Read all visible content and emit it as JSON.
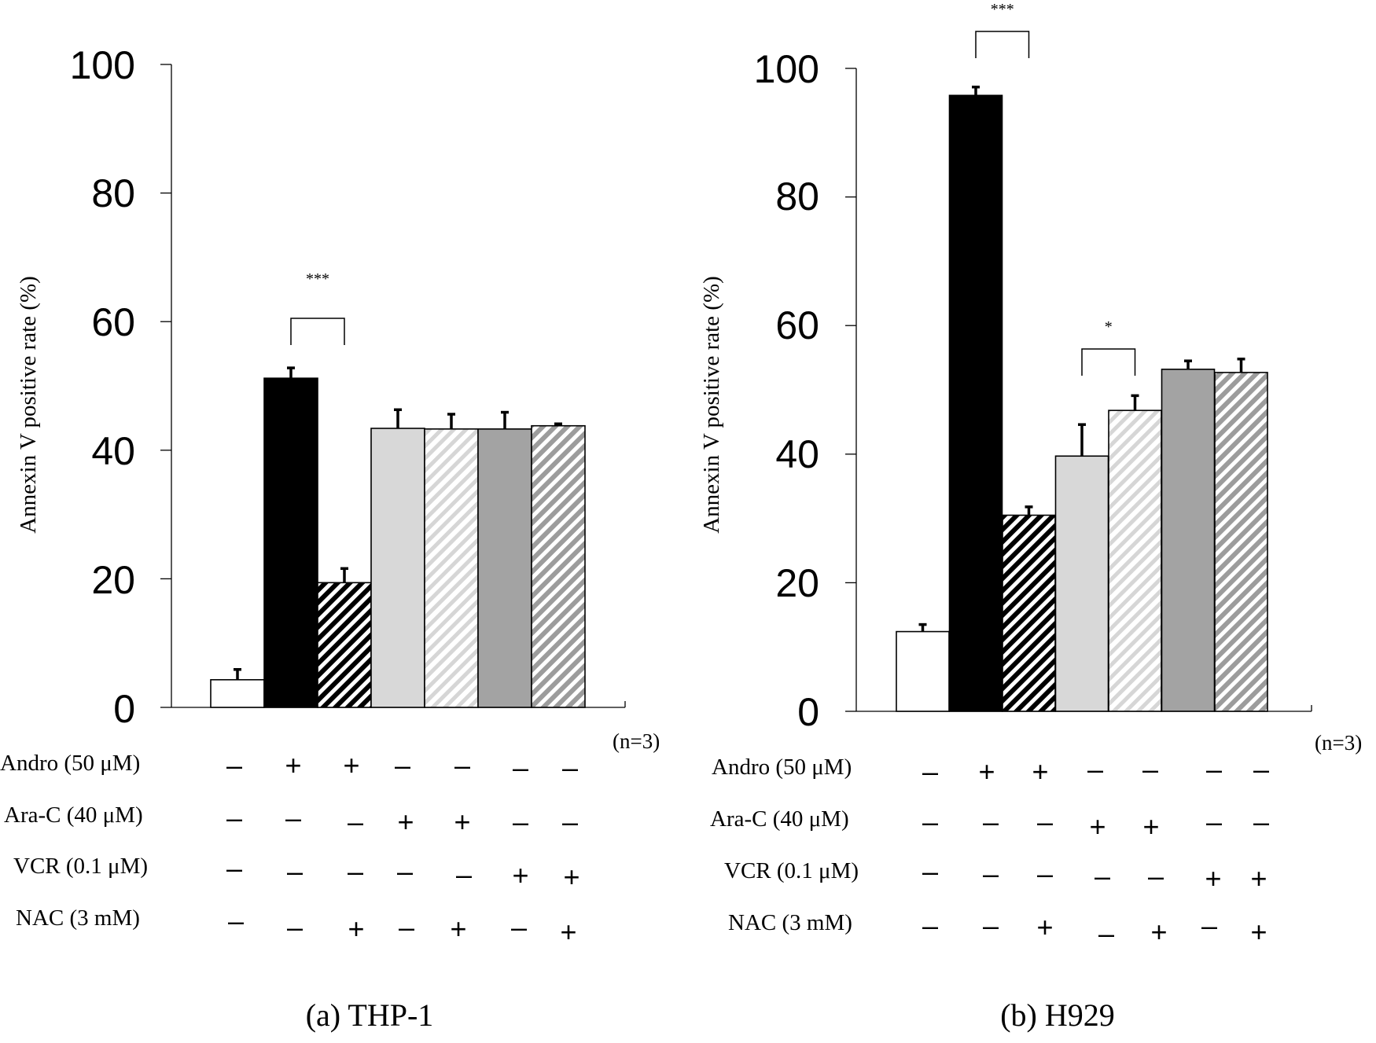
{
  "figure": {
    "panels": [
      {
        "id": "a",
        "caption": "(a) THP-1",
        "n_label": "(n=3)",
        "ylabel": "Annexin V positive rate (%)",
        "yticks": [
          "0",
          "20",
          "40",
          "60",
          "80",
          "100"
        ],
        "rows": [
          {
            "label": "Andro (50 μM)",
            "marks": [
              "–",
              "+",
              "+",
              "–",
              "–",
              "–",
              "–"
            ]
          },
          {
            "label": "Ara-C (40 μM)",
            "marks": [
              "–",
              "–",
              "–",
              "+",
              "+",
              "–",
              "–"
            ]
          },
          {
            "label": "VCR (0.1 μM)",
            "marks": [
              "–",
              "–",
              "–",
              "–",
              "–",
              "+",
              "+"
            ]
          },
          {
            "label": "NAC (3 mM)",
            "marks": [
              "–",
              "–",
              "+",
              "–",
              "+",
              "–",
              "+"
            ]
          }
        ]
      },
      {
        "id": "b",
        "caption": "(b) H929",
        "n_label": "(n=3)",
        "ylabel": "Annexin V positive rate (%)",
        "yticks": [
          "0",
          "20",
          "40",
          "60",
          "80",
          "100"
        ],
        "rows": [
          {
            "label": "Andro (50 μM)",
            "marks": [
              "–",
              "+",
              "+",
              "–",
              "–",
              "–",
              "–"
            ]
          },
          {
            "label": "Ara-C (40 μM)",
            "marks": [
              "–",
              "–",
              "–",
              "+",
              "+",
              "–",
              "–"
            ]
          },
          {
            "label": "VCR (0.1 μM)",
            "marks": [
              "–",
              "–",
              "–",
              "–",
              "–",
              "+",
              "+"
            ]
          },
          {
            "label": "NAC (3 mM)",
            "marks": [
              "–",
              "–",
              "+",
              "–",
              "+",
              "–",
              "+"
            ]
          }
        ]
      }
    ]
  },
  "chart_data": [
    {
      "type": "bar",
      "title": "(a) THP-1",
      "xlabel": "",
      "ylabel": "Annexin V positive rate (%)",
      "ylim": [
        0,
        100
      ],
      "grid": false,
      "categories": [
        "Control",
        "Andro",
        "Andro + NAC",
        "Ara-C",
        "Ara-C + NAC",
        "VCR",
        "VCR + NAC"
      ],
      "values": [
        4.3,
        51.2,
        19.4,
        43.4,
        43.3,
        43.3,
        43.8
      ],
      "errors": [
        1.6,
        1.6,
        2.2,
        2.9,
        2.3,
        2.6,
        0.3
      ],
      "bar_styles": [
        "white",
        "black",
        "black-hatch",
        "lightgray",
        "lightgray-hatch",
        "gray",
        "gray-hatch"
      ],
      "annotations": [
        {
          "from": 1,
          "to": 2,
          "text": "***"
        }
      ]
    },
    {
      "type": "bar",
      "title": "(b) H929",
      "xlabel": "",
      "ylabel": "Annexin V positive rate (%)",
      "ylim": [
        0,
        100
      ],
      "grid": false,
      "categories": [
        "Control",
        "Andro",
        "Andro + NAC",
        "Ara-C",
        "Ara-C + NAC",
        "VCR",
        "VCR + NAC"
      ],
      "values": [
        12.4,
        95.8,
        30.5,
        39.7,
        46.8,
        53.2,
        52.7
      ],
      "errors": [
        1.1,
        1.3,
        1.3,
        4.9,
        2.3,
        1.3,
        2.1
      ],
      "bar_styles": [
        "white",
        "black",
        "black-hatch",
        "lightgray",
        "lightgray-hatch",
        "gray",
        "gray-hatch"
      ],
      "annotations": [
        {
          "from": 1,
          "to": 2,
          "text": "***"
        },
        {
          "from": 3,
          "to": 4,
          "text": "*"
        }
      ]
    }
  ]
}
